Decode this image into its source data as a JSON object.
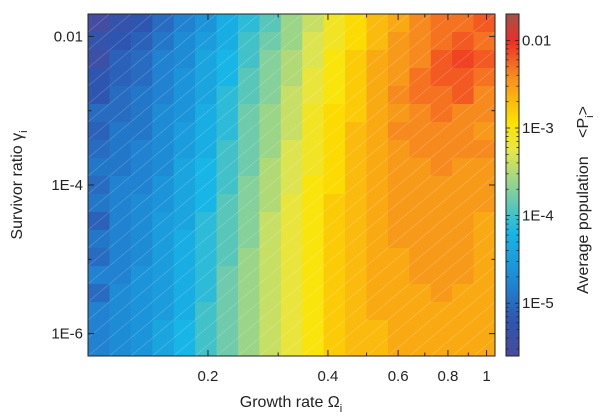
{
  "chart_data": {
    "type": "heatmap",
    "xlabel": "Growth rate Ω",
    "xlabel_sub": "i",
    "ylabel": "Survivor ratio γ",
    "ylabel_sub": "i",
    "colorbar_label": "Average population",
    "colorbar_symbol": "<P",
    "colorbar_symbol_sub": "i",
    "colorbar_symbol_close": ">",
    "x_scale": "log",
    "y_scale": "log",
    "xlim": [
      0.1,
      1.05
    ],
    "ylim": [
      5e-07,
      0.02
    ],
    "x_tick_labels": [
      {
        "value": 0.2,
        "label": "0.2"
      },
      {
        "value": 0.4,
        "label": "0.4"
      },
      {
        "value": 0.6,
        "label": "0.6"
      },
      {
        "value": 0.8,
        "label": "0.8"
      },
      {
        "value": 1.0,
        "label": "1"
      }
    ],
    "y_tick_labels": [
      {
        "value": 0.01,
        "label": "0.01"
      },
      {
        "value": 0.0001,
        "label": "1E-4"
      },
      {
        "value": 1e-06,
        "label": "1E-6"
      }
    ],
    "colorbar_range": [
      2.5e-06,
      0.02
    ],
    "colorbar_tick_labels": [
      {
        "value": 0.01,
        "label": "0.01"
      },
      {
        "value": 0.001,
        "label": "1E-3"
      },
      {
        "value": 0.0001,
        "label": "1E-4"
      },
      {
        "value": 1e-05,
        "label": "1E-5"
      }
    ],
    "grid": {
      "cols": 19,
      "rows": 19,
      "x_range": [
        0.1,
        1.05
      ],
      "y_range": [
        5e-07,
        0.02
      ],
      "value_log10": [
        [
          -5.5,
          -5.3,
          -5.2,
          -5.0,
          -4.8,
          -4.6,
          -4.3,
          -4.1,
          -3.9,
          -3.6,
          -3.4,
          -3.1,
          -2.9,
          -2.7,
          -2.6,
          -2.4,
          -2.3,
          -2.3,
          -2.2
        ],
        [
          -5.3,
          -5.2,
          -5.1,
          -4.9,
          -4.7,
          -4.5,
          -4.3,
          -4.0,
          -3.8,
          -3.6,
          -3.3,
          -3.1,
          -2.9,
          -2.7,
          -2.5,
          -2.4,
          -2.3,
          -2.2,
          -2.3
        ],
        [
          -5.4,
          -5.1,
          -5.0,
          -4.8,
          -4.7,
          -4.4,
          -4.2,
          -4.0,
          -3.7,
          -3.5,
          -3.3,
          -3.0,
          -2.8,
          -2.6,
          -2.5,
          -2.4,
          -2.2,
          -2.1,
          -2.2
        ],
        [
          -5.2,
          -5.1,
          -5.0,
          -4.8,
          -4.6,
          -4.4,
          -4.2,
          -3.9,
          -3.7,
          -3.5,
          -3.2,
          -3.0,
          -2.8,
          -2.6,
          -2.5,
          -2.3,
          -2.2,
          -2.2,
          -2.3
        ],
        [
          -5.2,
          -5.0,
          -4.9,
          -4.8,
          -4.6,
          -4.4,
          -4.1,
          -3.9,
          -3.7,
          -3.4,
          -3.2,
          -3.0,
          -2.8,
          -2.6,
          -2.4,
          -2.3,
          -2.3,
          -2.2,
          -2.4
        ],
        [
          -5.0,
          -5.0,
          -4.9,
          -4.7,
          -4.6,
          -4.3,
          -4.1,
          -3.8,
          -3.6,
          -3.4,
          -3.1,
          -2.9,
          -2.8,
          -2.6,
          -2.5,
          -2.4,
          -2.3,
          -2.4,
          -2.4
        ],
        [
          -5.1,
          -4.9,
          -4.9,
          -4.7,
          -4.5,
          -4.3,
          -4.1,
          -3.8,
          -3.6,
          -3.4,
          -3.1,
          -2.9,
          -2.7,
          -2.6,
          -2.4,
          -2.4,
          -2.4,
          -2.4,
          -2.5
        ],
        [
          -5.0,
          -4.9,
          -4.8,
          -4.7,
          -4.5,
          -4.3,
          -4.0,
          -3.8,
          -3.6,
          -3.3,
          -3.1,
          -2.9,
          -2.7,
          -2.6,
          -2.5,
          -2.4,
          -2.4,
          -2.4,
          -2.4
        ],
        [
          -4.9,
          -4.9,
          -4.8,
          -4.7,
          -4.4,
          -4.2,
          -4.0,
          -3.8,
          -3.5,
          -3.3,
          -3.1,
          -2.9,
          -2.7,
          -2.6,
          -2.5,
          -2.5,
          -2.4,
          -2.5,
          -2.5
        ],
        [
          -5.0,
          -4.8,
          -4.8,
          -4.6,
          -4.4,
          -4.2,
          -4.0,
          -3.7,
          -3.5,
          -3.3,
          -3.0,
          -2.9,
          -2.7,
          -2.6,
          -2.5,
          -2.5,
          -2.5,
          -2.5,
          -2.5
        ],
        [
          -4.9,
          -4.8,
          -4.7,
          -4.6,
          -4.4,
          -4.2,
          -3.9,
          -3.7,
          -3.5,
          -3.2,
          -3.0,
          -2.8,
          -2.7,
          -2.6,
          -2.5,
          -2.5,
          -2.5,
          -2.5,
          -2.5
        ],
        [
          -5.1,
          -4.8,
          -4.7,
          -4.5,
          -4.4,
          -4.1,
          -3.9,
          -3.7,
          -3.4,
          -3.2,
          -3.0,
          -2.8,
          -2.7,
          -2.6,
          -2.5,
          -2.5,
          -2.5,
          -2.5,
          -2.6
        ],
        [
          -4.9,
          -4.8,
          -4.7,
          -4.5,
          -4.3,
          -4.1,
          -3.9,
          -3.7,
          -3.4,
          -3.2,
          -3.0,
          -2.8,
          -2.7,
          -2.6,
          -2.5,
          -2.5,
          -2.5,
          -2.5,
          -2.6
        ],
        [
          -5.0,
          -4.8,
          -4.7,
          -4.5,
          -4.3,
          -4.1,
          -3.9,
          -3.6,
          -3.4,
          -3.2,
          -3.0,
          -2.8,
          -2.7,
          -2.6,
          -2.6,
          -2.5,
          -2.5,
          -2.5,
          -2.6
        ],
        [
          -4.8,
          -4.8,
          -4.6,
          -4.5,
          -4.3,
          -4.1,
          -3.8,
          -3.6,
          -3.4,
          -3.2,
          -3.0,
          -2.8,
          -2.7,
          -2.6,
          -2.6,
          -2.5,
          -2.5,
          -2.5,
          -2.6
        ],
        [
          -5.0,
          -4.7,
          -4.6,
          -4.5,
          -4.3,
          -4.1,
          -3.8,
          -3.6,
          -3.4,
          -3.2,
          -3.0,
          -2.8,
          -2.7,
          -2.6,
          -2.6,
          -2.6,
          -2.5,
          -2.6,
          -2.6
        ],
        [
          -4.8,
          -4.7,
          -4.6,
          -4.5,
          -4.3,
          -4.0,
          -3.8,
          -3.6,
          -3.4,
          -3.2,
          -3.0,
          -2.8,
          -2.7,
          -2.6,
          -2.6,
          -2.6,
          -2.6,
          -2.6,
          -2.6
        ],
        [
          -4.8,
          -4.7,
          -4.6,
          -4.4,
          -4.2,
          -4.0,
          -3.8,
          -3.6,
          -3.4,
          -3.2,
          -3.0,
          -2.8,
          -2.7,
          -2.7,
          -2.6,
          -2.6,
          -2.6,
          -2.6,
          -2.6
        ],
        [
          -4.8,
          -4.7,
          -4.6,
          -4.4,
          -4.2,
          -4.0,
          -3.8,
          -3.6,
          -3.4,
          -3.2,
          -3.0,
          -2.8,
          -2.7,
          -2.7,
          -2.6,
          -2.6,
          -2.6,
          -2.6,
          -2.6
        ]
      ]
    }
  }
}
